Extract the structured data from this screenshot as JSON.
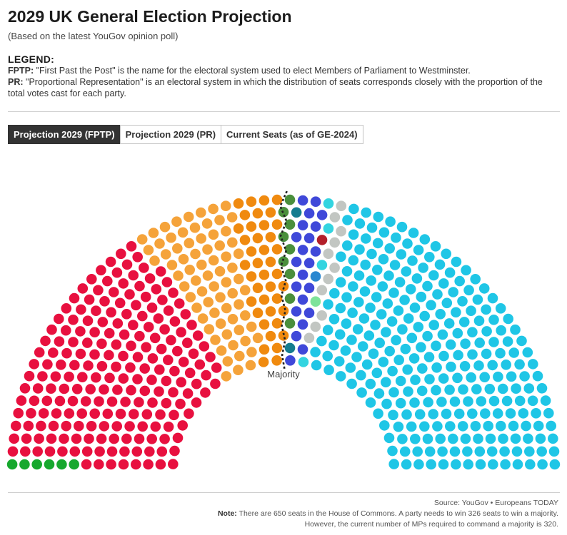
{
  "header": {
    "title": "2029 UK General Election Projection",
    "subtitle": "(Based on the latest YouGov opinion poll)"
  },
  "legend": {
    "heading": "LEGEND:",
    "fptp_term": "FPTP:",
    "fptp_text": "\"First Past the Post\" is the name for the electoral system used to elect Members of Parliament to Westminster.",
    "pr_term": "PR:",
    "pr_text": "\"Proportional Representation\" is an electoral system in which the distribution of seats corresponds closely with the proportion of the total votes cast for each party."
  },
  "tabs": [
    {
      "label": "Projection 2029 (FPTP)",
      "active": true
    },
    {
      "label": "Projection 2029 (PR)",
      "active": false
    },
    {
      "label": "Current Seats (as of GE-2024)",
      "active": false
    }
  ],
  "chart_data": {
    "type": "parliament",
    "total_seats": 650,
    "majority_label": "Majority",
    "majority_threshold": 326,
    "groups": [
      {
        "color": "#17a82e",
        "seats": 6
      },
      {
        "color": "#e8103f",
        "seats": 207
      },
      {
        "color": "#f5a33a",
        "seats": 72
      },
      {
        "color": "#f08a0f",
        "seats": 40
      },
      {
        "color": "#4a8f3c",
        "seats": 9
      },
      {
        "color": "#157d8f",
        "seats": 2
      },
      {
        "color": "#3f48d9",
        "seats": 22
      },
      {
        "color": "#2a87d0",
        "seats": 1
      },
      {
        "color": "#b3202a",
        "seats": 1
      },
      {
        "color": "#33d4e0",
        "seats": 4
      },
      {
        "color": "#7ee39a",
        "seats": 1
      },
      {
        "color": "#c2c6c2",
        "seats": 11
      },
      {
        "color": "#1fc6e6",
        "seats": 274
      }
    ]
  },
  "footer": {
    "source": "Source: YouGov • Europeans TODAY",
    "note_label": "Note:",
    "note_line1": "There are 650 seats in the House of Commons. A party needs to win 326 seats to win a majority.",
    "note_line2": "However, the current number of MPs required to command a majority is 320."
  }
}
